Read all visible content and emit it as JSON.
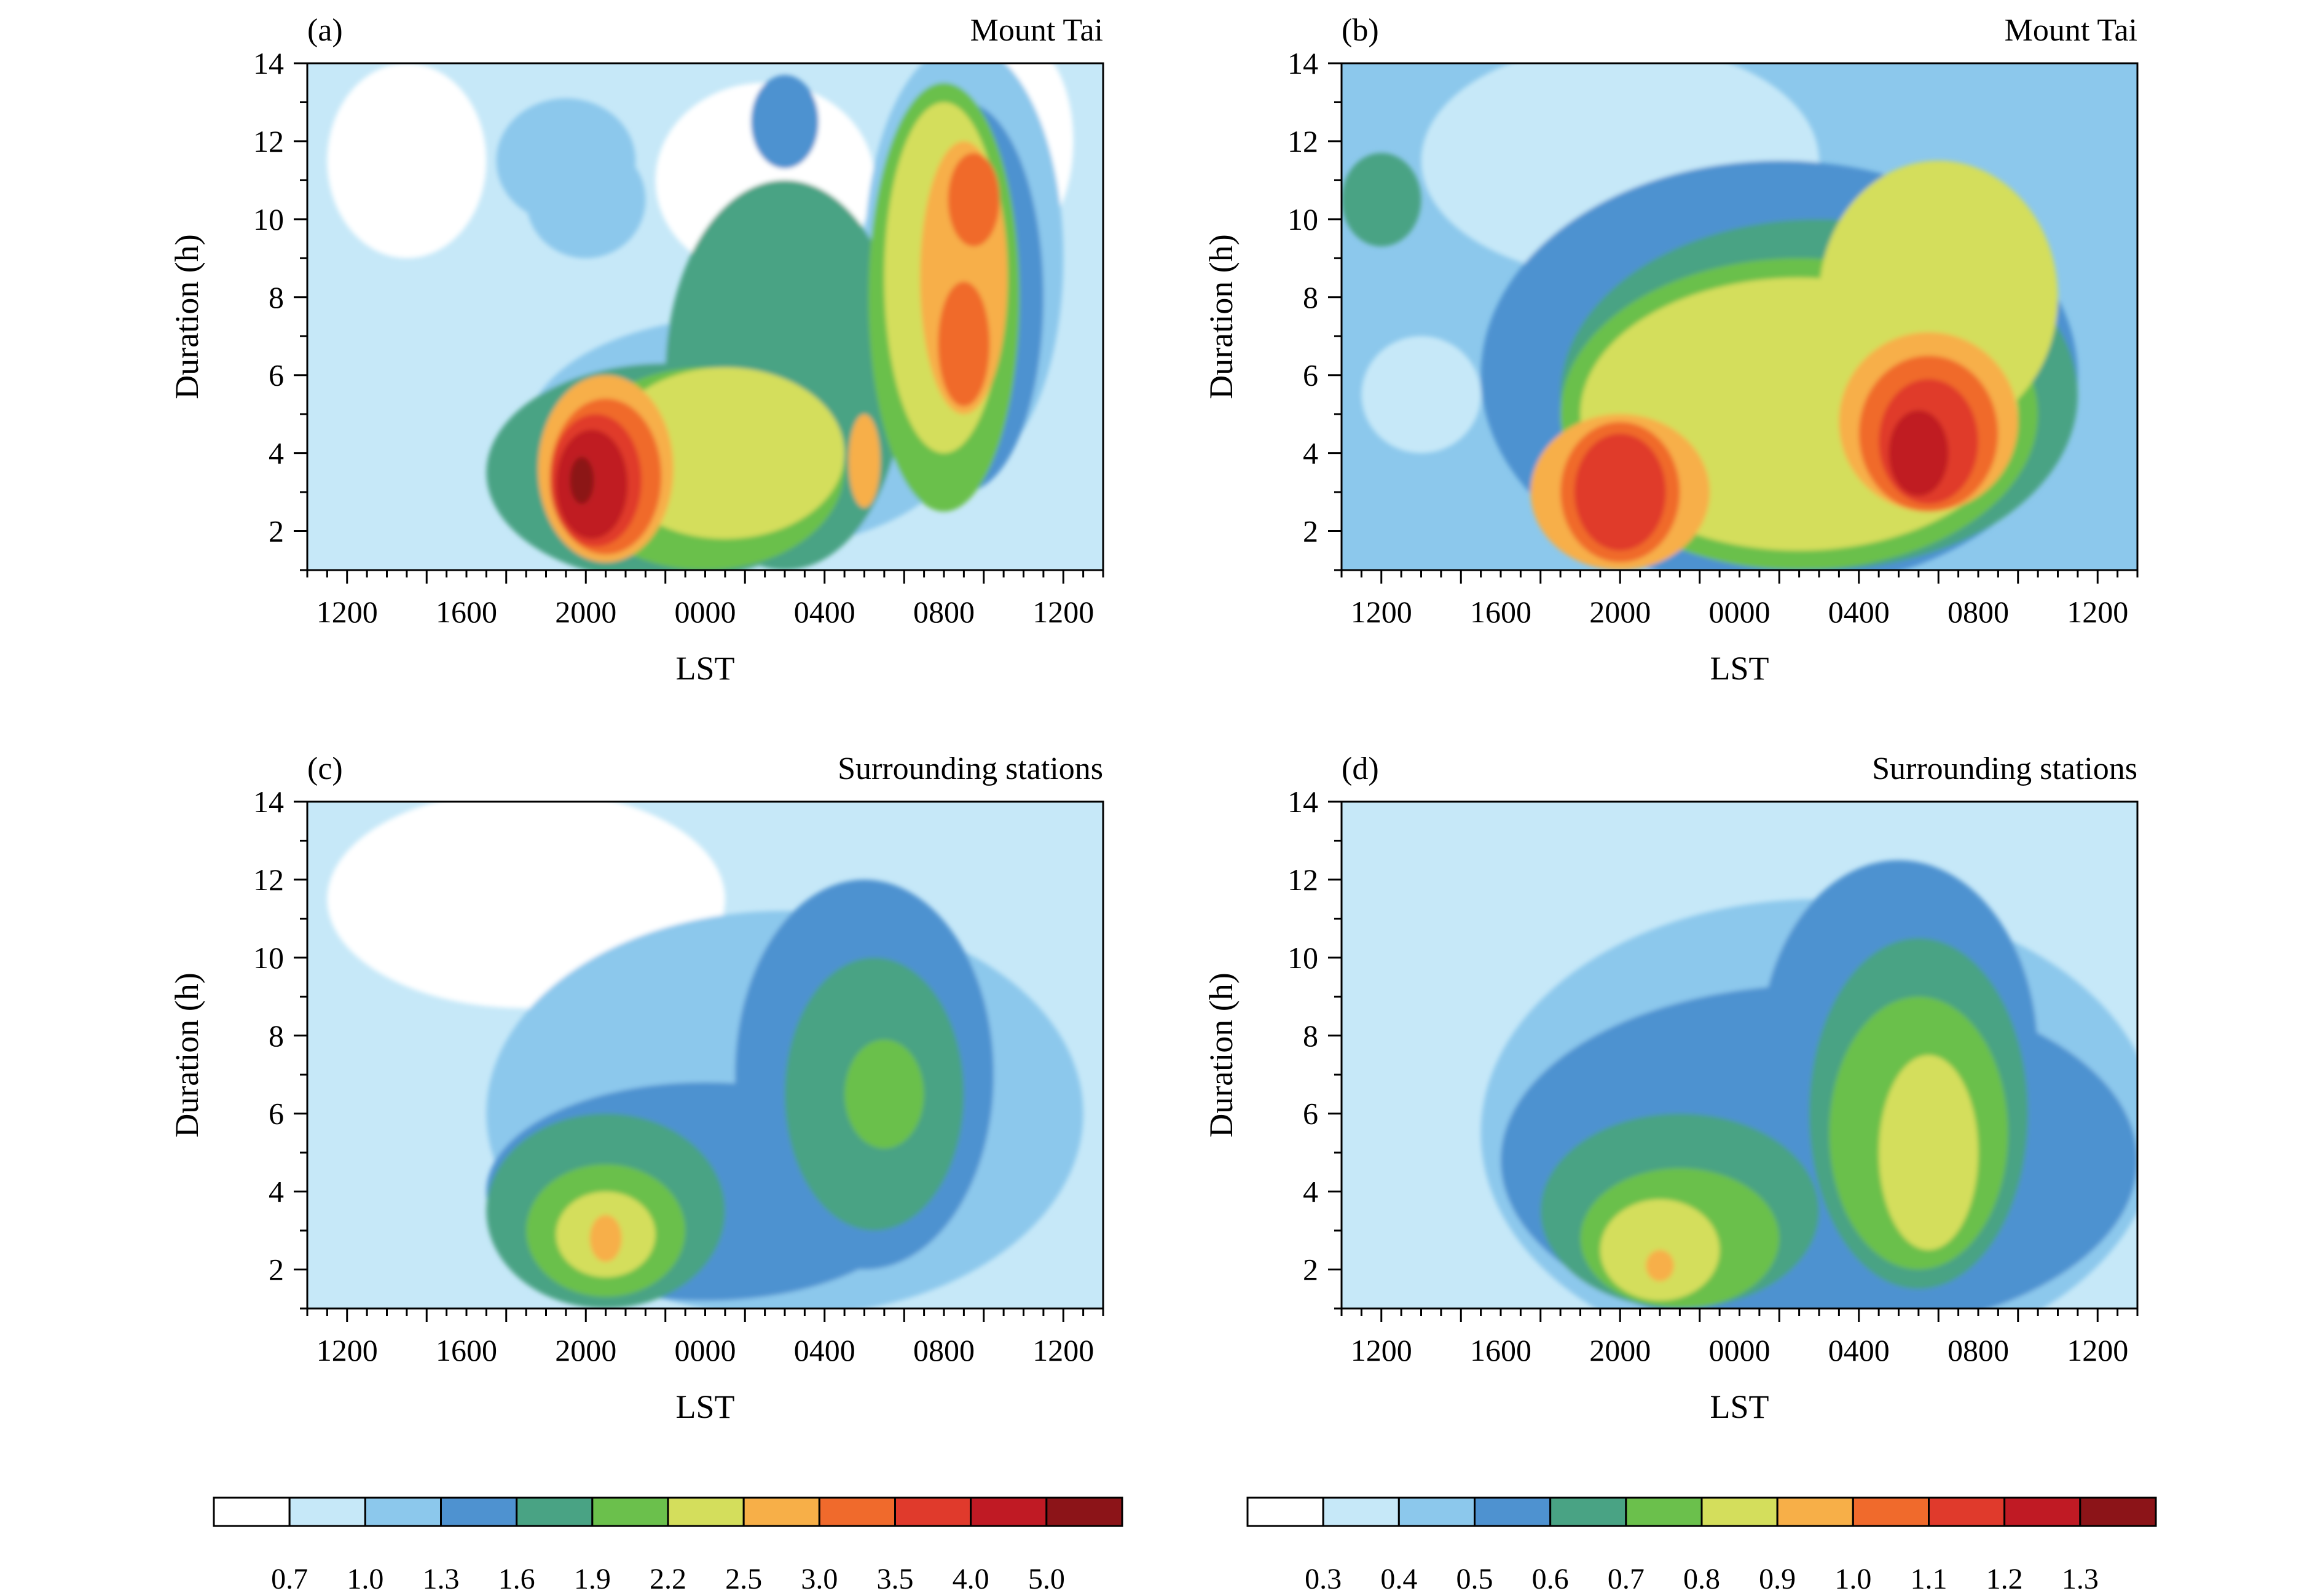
{
  "figure": {
    "colorbars": [
      {
        "labels": [
          "0.7",
          "1.0",
          "1.3",
          "1.6",
          "1.9",
          "2.2",
          "2.5",
          "3.0",
          "3.5",
          "4.0",
          "5.0"
        ],
        "colors": [
          "#ffffff",
          "#c6e8f8",
          "#8cc8ec",
          "#4e92d0",
          "#49a384",
          "#6bc04c",
          "#d4de5c",
          "#f7af48",
          "#f06a2c",
          "#e03a2c",
          "#c01a24",
          "#8c1418"
        ]
      },
      {
        "labels": [
          "0.3",
          "0.4",
          "0.5",
          "0.6",
          "0.7",
          "0.8",
          "0.9",
          "1.0",
          "1.1",
          "1.2",
          "1.3"
        ],
        "colors": [
          "#ffffff",
          "#c6e8f8",
          "#8cc8ec",
          "#4e92d0",
          "#49a384",
          "#6bc04c",
          "#d4de5c",
          "#f7af48",
          "#f06a2c",
          "#e03a2c",
          "#c01a24",
          "#8c1418"
        ]
      }
    ]
  },
  "chart_data": [
    {
      "panel": "(a)",
      "location": "Mount Tai",
      "type": "heatmap",
      "xlabel": "LST",
      "ylabel": "Duration (h)",
      "xticks": [
        "1200",
        "1600",
        "2000",
        "0000",
        "0400",
        "0800",
        "1200"
      ],
      "yticks": [
        "2",
        "4",
        "6",
        "8",
        "10",
        "12",
        "14"
      ],
      "ylim": [
        1,
        14
      ],
      "colorbar": 0,
      "background_level": 1,
      "blobs": [
        {
          "level": 2,
          "cx": 14,
          "cy": 10.5,
          "rx": 3,
          "ry": 1.5
        },
        {
          "level": 2,
          "cx": 13,
          "cy": 11.5,
          "rx": 3.5,
          "ry": 1.6
        },
        {
          "level": 0,
          "cx": 5,
          "cy": 11.5,
          "rx": 4,
          "ry": 2.5
        },
        {
          "level": 0,
          "cx": 23,
          "cy": 11,
          "rx": 5.5,
          "ry": 2.5
        },
        {
          "level": 0,
          "cx": 36,
          "cy": 12,
          "rx": 2.5,
          "ry": 2.5
        },
        {
          "level": 2,
          "cx": 33,
          "cy": 9,
          "rx": 5,
          "ry": 5.5
        },
        {
          "level": 3,
          "cx": 33,
          "cy": 8,
          "rx": 4,
          "ry": 5
        },
        {
          "level": 3,
          "cx": 24,
          "cy": 12.5,
          "rx": 1.7,
          "ry": 1.2
        },
        {
          "level": 2,
          "cx": 22,
          "cy": 4.5,
          "rx": 11,
          "ry": 3
        },
        {
          "level": 4,
          "cx": 24,
          "cy": 6,
          "rx": 6,
          "ry": 5
        },
        {
          "level": 4,
          "cx": 18,
          "cy": 3.5,
          "rx": 9,
          "ry": 2.8
        },
        {
          "level": 5,
          "cx": 32,
          "cy": 8,
          "rx": 3.8,
          "ry": 5.5
        },
        {
          "level": 5,
          "cx": 20,
          "cy": 3.6,
          "rx": 7,
          "ry": 2.6
        },
        {
          "level": 6,
          "cx": 32,
          "cy": 8.5,
          "rx": 3,
          "ry": 4.5
        },
        {
          "level": 6,
          "cx": 21,
          "cy": 4,
          "rx": 6,
          "ry": 2.2
        },
        {
          "level": 7,
          "cx": 33,
          "cy": 8.5,
          "rx": 2.2,
          "ry": 3.5
        },
        {
          "level": 7,
          "cx": 15,
          "cy": 3.6,
          "rx": 3.4,
          "ry": 2.4
        },
        {
          "level": 7,
          "cx": 28,
          "cy": 3.8,
          "rx": 0.8,
          "ry": 1.2
        },
        {
          "level": 8,
          "cx": 33.5,
          "cy": 10.5,
          "rx": 1.3,
          "ry": 1.2
        },
        {
          "level": 8,
          "cx": 33,
          "cy": 6.8,
          "rx": 1.3,
          "ry": 1.6
        },
        {
          "level": 8,
          "cx": 15,
          "cy": 3.4,
          "rx": 2.8,
          "ry": 2
        },
        {
          "level": 9,
          "cx": 14.5,
          "cy": 3.3,
          "rx": 2.3,
          "ry": 1.7
        },
        {
          "level": 10,
          "cx": 14.3,
          "cy": 3.2,
          "rx": 1.8,
          "ry": 1.4
        },
        {
          "level": 11,
          "cx": 13.8,
          "cy": 3.3,
          "rx": 0.6,
          "ry": 0.6
        }
      ]
    },
    {
      "panel": "(b)",
      "location": "Mount Tai",
      "type": "heatmap",
      "xlabel": "LST",
      "ylabel": "Duration (h)",
      "xticks": [
        "1200",
        "1600",
        "2000",
        "0000",
        "0400",
        "0800",
        "1200"
      ],
      "yticks": [
        "2",
        "4",
        "6",
        "8",
        "10",
        "12",
        "14"
      ],
      "ylim": [
        1,
        14
      ],
      "colorbar": 1,
      "background_level": 2,
      "blobs": [
        {
          "level": 1,
          "cx": 14,
          "cy": 11.5,
          "rx": 10,
          "ry": 3
        },
        {
          "level": 1,
          "cx": 4,
          "cy": 5.5,
          "rx": 3,
          "ry": 1.5
        },
        {
          "level": 3,
          "cx": 22,
          "cy": 6,
          "rx": 15,
          "ry": 5.5
        },
        {
          "level": 4,
          "cx": 24,
          "cy": 5.5,
          "rx": 13,
          "ry": 4.5
        },
        {
          "level": 4,
          "cx": 2,
          "cy": 10.5,
          "rx": 2,
          "ry": 1.2
        },
        {
          "level": 5,
          "cx": 23,
          "cy": 5,
          "rx": 12,
          "ry": 4
        },
        {
          "level": 6,
          "cx": 23,
          "cy": 5,
          "rx": 11,
          "ry": 3.5
        },
        {
          "level": 6,
          "cx": 30,
          "cy": 8,
          "rx": 6,
          "ry": 3.5
        },
        {
          "level": 7,
          "cx": 14,
          "cy": 3,
          "rx": 4.5,
          "ry": 2
        },
        {
          "level": 7,
          "cx": 29.5,
          "cy": 4.8,
          "rx": 4.5,
          "ry": 2.3
        },
        {
          "level": 8,
          "cx": 14,
          "cy": 3,
          "rx": 3,
          "ry": 1.8
        },
        {
          "level": 8,
          "cx": 29.5,
          "cy": 4.5,
          "rx": 3.5,
          "ry": 2
        },
        {
          "level": 9,
          "cx": 14,
          "cy": 3,
          "rx": 2.3,
          "ry": 1.5
        },
        {
          "level": 9,
          "cx": 29.5,
          "cy": 4.3,
          "rx": 2.5,
          "ry": 1.6
        },
        {
          "level": 10,
          "cx": 29,
          "cy": 4,
          "rx": 1.5,
          "ry": 1.1
        }
      ]
    },
    {
      "panel": "(c)",
      "location": "Surrounding stations",
      "type": "heatmap",
      "xlabel": "LST",
      "ylabel": "Duration (h)",
      "xticks": [
        "1200",
        "1600",
        "2000",
        "0000",
        "0400",
        "0800",
        "1200"
      ],
      "yticks": [
        "2",
        "4",
        "6",
        "8",
        "10",
        "12",
        "14"
      ],
      "ylim": [
        1,
        14
      ],
      "colorbar": 0,
      "background_level": 1,
      "blobs": [
        {
          "level": 0,
          "cx": 11,
          "cy": 11.5,
          "rx": 10,
          "ry": 2.8
        },
        {
          "level": 2,
          "cx": 24,
          "cy": 6,
          "rx": 15,
          "ry": 5.2
        },
        {
          "level": 3,
          "cx": 20,
          "cy": 4,
          "rx": 11,
          "ry": 2.8
        },
        {
          "level": 3,
          "cx": 28,
          "cy": 7,
          "rx": 6.5,
          "ry": 5
        },
        {
          "level": 4,
          "cx": 15,
          "cy": 3.5,
          "rx": 6,
          "ry": 2.5
        },
        {
          "level": 4,
          "cx": 28.5,
          "cy": 6.5,
          "rx": 4.5,
          "ry": 3.5
        },
        {
          "level": 5,
          "cx": 15,
          "cy": 3,
          "rx": 4,
          "ry": 1.7
        },
        {
          "level": 5,
          "cx": 29,
          "cy": 6.5,
          "rx": 2,
          "ry": 1.4
        },
        {
          "level": 6,
          "cx": 15,
          "cy": 2.9,
          "rx": 2.5,
          "ry": 1.1
        },
        {
          "level": 7,
          "cx": 15,
          "cy": 2.8,
          "rx": 0.8,
          "ry": 0.6
        }
      ]
    },
    {
      "panel": "(d)",
      "location": "Surrounding stations",
      "type": "heatmap",
      "xlabel": "LST",
      "ylabel": "Duration (h)",
      "xticks": [
        "1200",
        "1600",
        "2000",
        "0000",
        "0400",
        "0800",
        "1200"
      ],
      "yticks": [
        "2",
        "4",
        "6",
        "8",
        "10",
        "12",
        "14"
      ],
      "ylim": [
        1,
        14
      ],
      "colorbar": 1,
      "background_level": 1,
      "blobs": [
        {
          "level": 2,
          "cx": 24,
          "cy": 5.5,
          "rx": 17,
          "ry": 6
        },
        {
          "level": 3,
          "cx": 24,
          "cy": 4.8,
          "rx": 16,
          "ry": 4.5
        },
        {
          "level": 3,
          "cx": 28,
          "cy": 7.5,
          "rx": 7,
          "ry": 5
        },
        {
          "level": 4,
          "cx": 29,
          "cy": 6,
          "rx": 5.5,
          "ry": 4.5
        },
        {
          "level": 4,
          "cx": 17,
          "cy": 3.5,
          "rx": 7,
          "ry": 2.5
        },
        {
          "level": 5,
          "cx": 29,
          "cy": 5.5,
          "rx": 4.5,
          "ry": 3.5
        },
        {
          "level": 5,
          "cx": 17,
          "cy": 2.8,
          "rx": 5,
          "ry": 1.8
        },
        {
          "level": 6,
          "cx": 29.5,
          "cy": 5,
          "rx": 2.5,
          "ry": 2.5
        },
        {
          "level": 6,
          "cx": 16,
          "cy": 2.5,
          "rx": 3,
          "ry": 1.3
        },
        {
          "level": 7,
          "cx": 16,
          "cy": 2.1,
          "rx": 0.7,
          "ry": 0.4
        }
      ]
    }
  ]
}
